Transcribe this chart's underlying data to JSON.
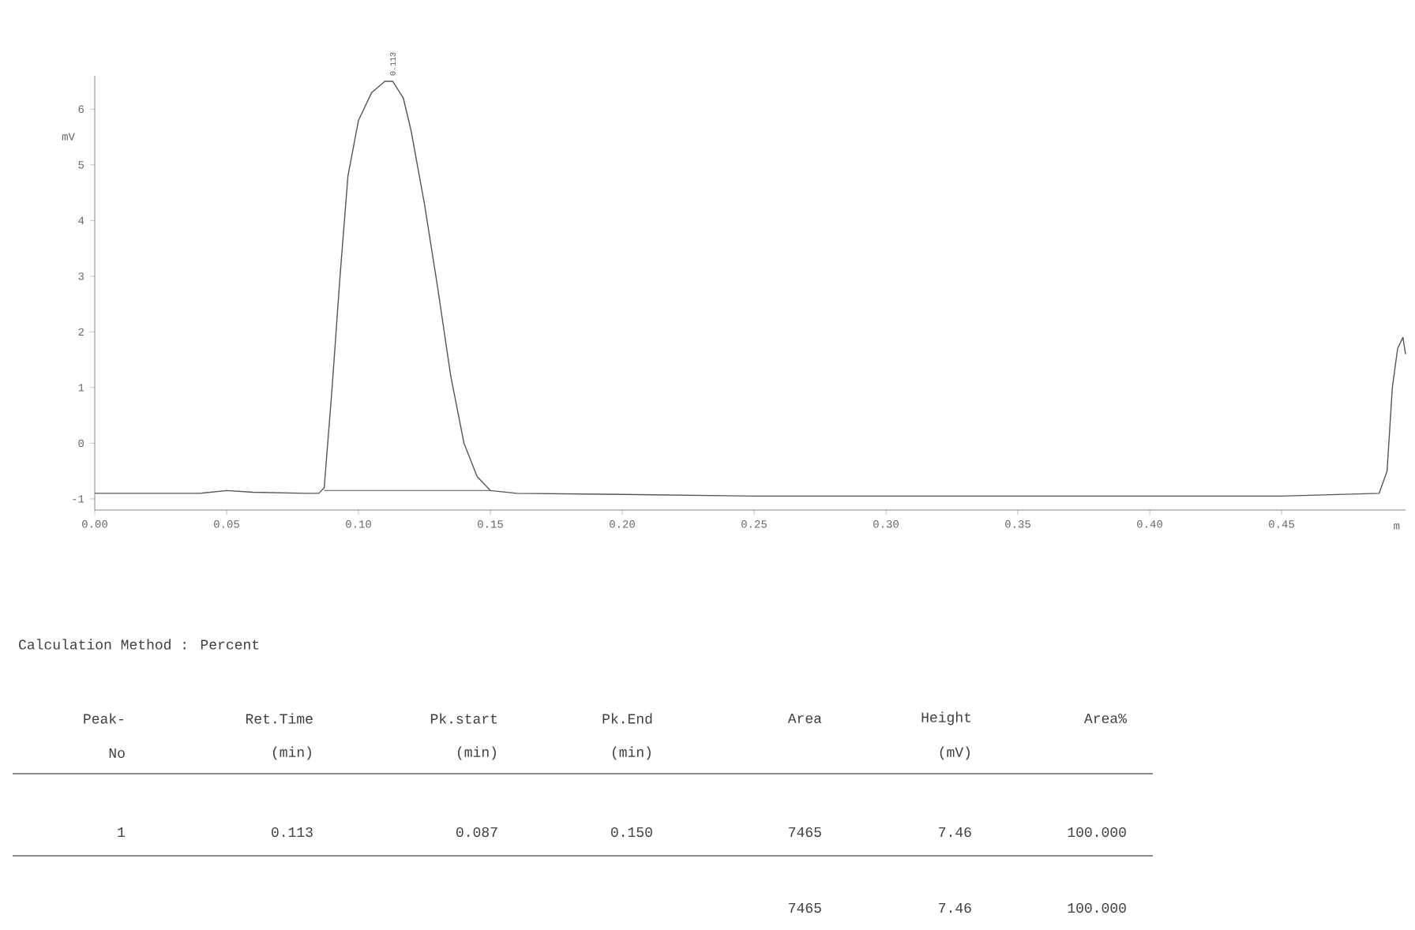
{
  "chart_data": {
    "type": "line",
    "xlabel": "m",
    "ylabel": "mV",
    "xlim": [
      0,
      0.497
    ],
    "ylim": [
      -1.2,
      6.6
    ],
    "xticks": [
      {
        "value": 0,
        "label": "0.00"
      },
      {
        "value": 0.05,
        "label": "0.05"
      },
      {
        "value": 0.1,
        "label": "0.10"
      },
      {
        "value": 0.15,
        "label": "0.15"
      },
      {
        "value": 0.2,
        "label": "0.20"
      },
      {
        "value": 0.25,
        "label": "0.25"
      },
      {
        "value": 0.3,
        "label": "0.30"
      },
      {
        "value": 0.35,
        "label": "0.35"
      },
      {
        "value": 0.4,
        "label": "0.40"
      },
      {
        "value": 0.45,
        "label": "0.45"
      }
    ],
    "yticks": [
      -1,
      0,
      1,
      2,
      3,
      4,
      5,
      6
    ],
    "series": [
      {
        "color": "#555555",
        "x": [
          0,
          0.02,
          0.04,
          0.05,
          0.06,
          0.08,
          0.085,
          0.087,
          0.09,
          0.093,
          0.096,
          0.1,
          0.105,
          0.11,
          0.113,
          0.117,
          0.12,
          0.125,
          0.13,
          0.135,
          0.14,
          0.145,
          0.15,
          0.16,
          0.2,
          0.25,
          0.3,
          0.35,
          0.4,
          0.45,
          0.487,
          0.49,
          0.492,
          0.494,
          0.496,
          0.497
        ],
        "values": [
          -0.9,
          -0.9,
          -0.9,
          -0.85,
          -0.88,
          -0.9,
          -0.9,
          -0.8,
          1.0,
          3.0,
          4.8,
          5.8,
          6.3,
          6.5,
          6.5,
          6.2,
          5.6,
          4.3,
          2.8,
          1.2,
          0.0,
          -0.6,
          -0.85,
          -0.9,
          -0.92,
          -0.95,
          -0.95,
          -0.95,
          -0.95,
          -0.95,
          -0.9,
          -0.5,
          1.0,
          1.7,
          1.9,
          1.6
        ]
      },
      {
        "color": "#777777",
        "x": [
          0.087,
          0.15
        ],
        "values": [
          -0.85,
          -0.85
        ]
      }
    ],
    "annotations": [
      {
        "text": "0.113",
        "x": 0.113,
        "y": 6.5
      },
      "Calculation Method : Percent",
      "Peak-",
      "Ret.Time",
      "Pk.start",
      "Pk.End",
      "Area",
      "Height",
      "Area%",
      "No",
      "(min)",
      "(min)",
      "(min)",
      "(mV)",
      "1",
      "0.113",
      "0.087",
      "0.150",
      "7465",
      "7.46",
      "100.000",
      "7465",
      "7.46",
      "100.000"
    ]
  }
}
